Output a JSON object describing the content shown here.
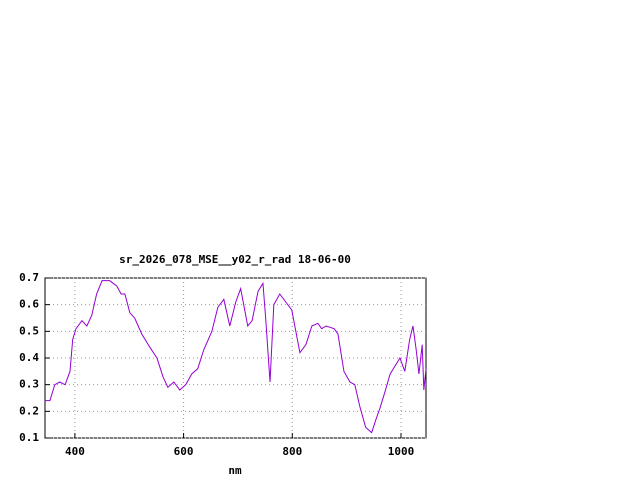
{
  "chart_data": {
    "type": "line",
    "title": "sr_2026_078_MSE__y02_r_rad 18-06-00",
    "x_label": "nm",
    "xlim": [
      345,
      1046
    ],
    "xticks": [
      400,
      600,
      800,
      1000
    ],
    "ylim": [
      0.1,
      0.7
    ],
    "yticks": [
      0.1,
      0.2,
      0.3,
      0.4,
      0.5,
      0.6,
      0.7
    ],
    "grid": true,
    "series": [
      {
        "color": "#9400d3",
        "x": [
          345,
          354,
          363,
          372,
          382,
          391,
          396,
          402,
          413,
          422,
          431,
          440,
          450,
          464,
          477,
          485,
          492,
          501,
          510,
          523,
          538,
          551,
          562,
          571,
          582,
          593,
          604,
          615,
          626,
          637,
          652,
          663,
          674,
          685,
          696,
          705,
          718,
          726,
          737,
          746,
          751,
          759,
          766,
          777,
          788,
          799,
          814,
          825,
          836,
          847,
          854,
          862,
          877,
          884,
          895,
          906,
          915,
          924,
          935,
          946,
          954,
          961,
          970,
          980,
          989,
          998,
          1007,
          1016,
          1022,
          1028,
          1033,
          1039,
          1042,
          1046
        ],
        "values": [
          0.24,
          0.24,
          0.3,
          0.31,
          0.3,
          0.35,
          0.47,
          0.51,
          0.54,
          0.52,
          0.56,
          0.64,
          0.69,
          0.69,
          0.67,
          0.64,
          0.64,
          0.57,
          0.55,
          0.49,
          0.44,
          0.4,
          0.33,
          0.29,
          0.31,
          0.28,
          0.3,
          0.34,
          0.36,
          0.43,
          0.5,
          0.59,
          0.62,
          0.52,
          0.61,
          0.66,
          0.52,
          0.54,
          0.65,
          0.68,
          0.55,
          0.31,
          0.6,
          0.64,
          0.61,
          0.58,
          0.42,
          0.45,
          0.52,
          0.53,
          0.51,
          0.52,
          0.51,
          0.49,
          0.35,
          0.31,
          0.3,
          0.22,
          0.14,
          0.12,
          0.17,
          0.21,
          0.27,
          0.34,
          0.37,
          0.4,
          0.35,
          0.47,
          0.52,
          0.43,
          0.34,
          0.45,
          0.28,
          0.36
        ]
      }
    ]
  }
}
